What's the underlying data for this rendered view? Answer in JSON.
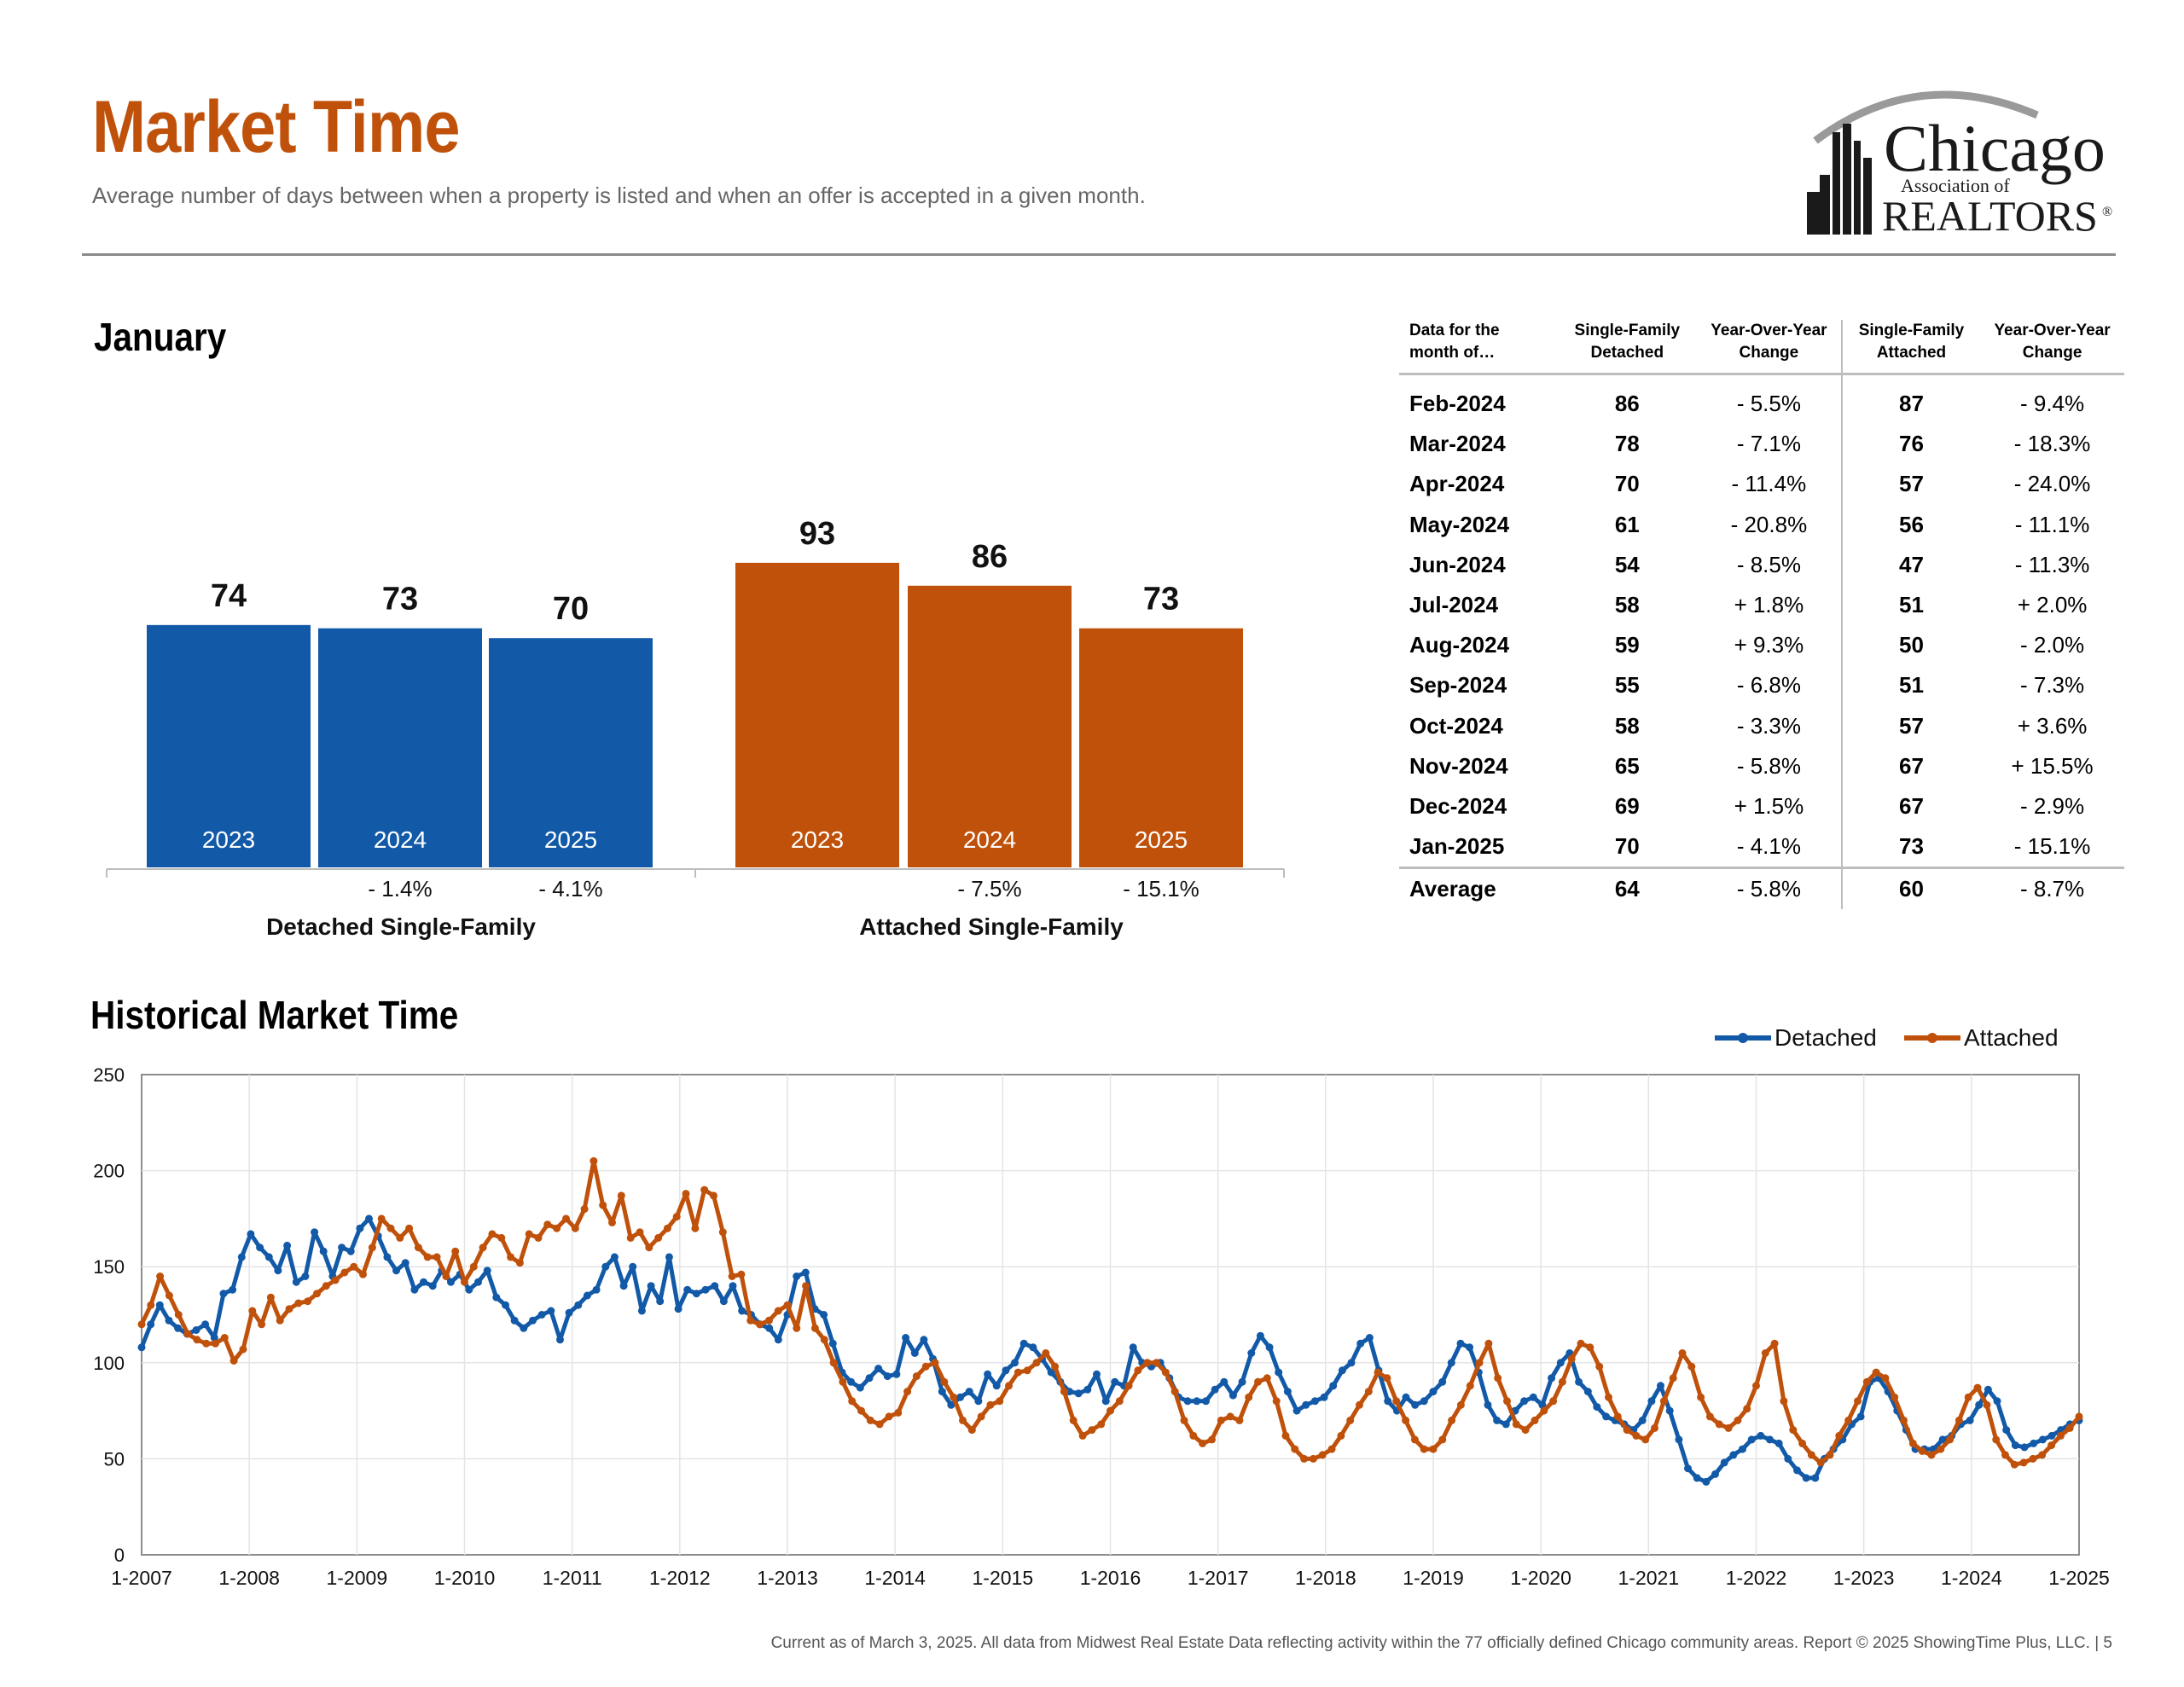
{
  "header": {
    "title": "Market Time",
    "subtitle": "Average number of days between when a property is listed and when an offer is accepted in a given month."
  },
  "logo": {
    "line1": "Chicago",
    "line2": "Association of",
    "line3": "REALTORS",
    "reg": "®"
  },
  "colors": {
    "accent": "#c0510a",
    "detached": "#125aa8",
    "attached": "#c0510a",
    "rule": "#8a8a8a"
  },
  "month_section": {
    "heading": "January"
  },
  "history_section": {
    "heading": "Historical Market Time"
  },
  "table": {
    "headers": [
      "Data for the\nmonth of…",
      "Single-Family\nDetached",
      "Year-Over-Year\nChange",
      "Single-Family\nAttached",
      "Year-Over-Year\nChange"
    ],
    "rows": [
      [
        "Feb-2024",
        "86",
        "- 5.5%",
        "87",
        "- 9.4%"
      ],
      [
        "Mar-2024",
        "78",
        "- 7.1%",
        "76",
        "- 18.3%"
      ],
      [
        "Apr-2024",
        "70",
        "- 11.4%",
        "57",
        "- 24.0%"
      ],
      [
        "May-2024",
        "61",
        "- 20.8%",
        "56",
        "- 11.1%"
      ],
      [
        "Jun-2024",
        "54",
        "- 8.5%",
        "47",
        "- 11.3%"
      ],
      [
        "Jul-2024",
        "58",
        "+ 1.8%",
        "51",
        "+ 2.0%"
      ],
      [
        "Aug-2024",
        "59",
        "+ 9.3%",
        "50",
        "- 2.0%"
      ],
      [
        "Sep-2024",
        "55",
        "- 6.8%",
        "51",
        "- 7.3%"
      ],
      [
        "Oct-2024",
        "58",
        "- 3.3%",
        "57",
        "+ 3.6%"
      ],
      [
        "Nov-2024",
        "65",
        "- 5.8%",
        "67",
        "+ 15.5%"
      ],
      [
        "Dec-2024",
        "69",
        "+ 1.5%",
        "67",
        "- 2.9%"
      ],
      [
        "Jan-2025",
        "70",
        "- 4.1%",
        "73",
        "- 15.1%"
      ]
    ],
    "average": [
      "Average",
      "64",
      "- 5.8%",
      "60",
      "- 8.7%"
    ]
  },
  "footer": "Current as of March 3, 2025.  All data from Midwest Real Estate Data reflecting activity within the 77 officially defined Chicago community areas. Report © 2025 ShowingTime Plus, LLC.  |  5",
  "chart_data": [
    {
      "type": "bar",
      "groups": [
        {
          "name": "Detached Single-Family",
          "color": "#125aa8",
          "categories": [
            "2023",
            "2024",
            "2025"
          ],
          "values": [
            74,
            73,
            70
          ],
          "changes": [
            "",
            "- 1.4%",
            "- 4.1%"
          ]
        },
        {
          "name": "Attached Single-Family",
          "color": "#c0510a",
          "categories": [
            "2023",
            "2024",
            "2025"
          ],
          "values": [
            93,
            86,
            73
          ],
          "changes": [
            "",
            "- 7.5%",
            "- 15.1%"
          ]
        }
      ],
      "ylim": [
        0,
        100
      ]
    },
    {
      "type": "line",
      "legend": "top-right",
      "grid": true,
      "ylim": [
        0,
        250
      ],
      "yticks": [
        "0",
        "50",
        "100",
        "150",
        "200",
        "250"
      ],
      "xticks": [
        "1-2007",
        "1-2008",
        "1-2009",
        "1-2010",
        "1-2011",
        "1-2012",
        "1-2013",
        "1-2014",
        "1-2015",
        "1-2016",
        "1-2017",
        "1-2018",
        "1-2019",
        "1-2020",
        "1-2021",
        "1-2022",
        "1-2023",
        "1-2024",
        "1-2025"
      ],
      "x_start": "1-2007",
      "x_end": "1-2025",
      "series": [
        {
          "name": "Detached",
          "color": "#125aa8",
          "values": [
            108,
            120,
            130,
            122,
            118,
            115,
            117,
            120,
            113,
            136,
            138,
            155,
            167,
            160,
            155,
            148,
            161,
            142,
            145,
            168,
            158,
            145,
            160,
            158,
            170,
            175,
            166,
            155,
            148,
            152,
            138,
            142,
            140,
            148,
            142,
            146,
            138,
            142,
            148,
            134,
            130,
            122,
            118,
            122,
            125,
            127,
            112,
            126,
            130,
            135,
            138,
            150,
            155,
            140,
            150,
            127,
            140,
            132,
            155,
            128,
            138,
            136,
            138,
            140,
            132,
            140,
            127,
            125,
            120,
            118,
            112,
            125,
            145,
            147,
            128,
            125,
            110,
            95,
            90,
            87,
            92,
            97,
            93,
            94,
            113,
            105,
            112,
            102,
            85,
            78,
            82,
            85,
            80,
            94,
            88,
            96,
            100,
            110,
            108,
            102,
            95,
            90,
            85,
            84,
            86,
            94,
            80,
            90,
            88,
            108,
            100,
            98,
            100,
            92,
            82,
            80,
            80,
            80,
            86,
            90,
            83,
            90,
            105,
            114,
            108,
            95,
            85,
            75,
            78,
            80,
            82,
            88,
            96,
            100,
            110,
            113,
            96,
            80,
            75,
            82,
            78,
            80,
            85,
            90,
            100,
            110,
            108,
            95,
            78,
            70,
            68,
            75,
            80,
            82,
            78,
            92,
            100,
            105,
            90,
            85,
            77,
            72,
            70,
            68,
            65,
            70,
            80,
            88,
            75,
            60,
            45,
            40,
            38,
            42,
            48,
            52,
            55,
            60,
            62,
            60,
            58,
            50,
            44,
            40,
            40,
            50,
            55,
            60,
            68,
            72,
            90,
            92,
            85,
            75,
            65,
            55,
            55,
            55,
            60,
            62,
            68,
            70,
            78,
            86,
            80,
            65,
            57,
            56,
            58,
            60,
            62,
            65,
            68,
            70
          ]
        },
        {
          "name": "Attached",
          "color": "#c0510a",
          "values": [
            120,
            130,
            145,
            135,
            125,
            115,
            112,
            110,
            110,
            113,
            101,
            107,
            127,
            120,
            134,
            122,
            128,
            131,
            132,
            136,
            140,
            143,
            147,
            150,
            146,
            160,
            175,
            170,
            165,
            170,
            160,
            155,
            155,
            145,
            158,
            142,
            150,
            160,
            167,
            165,
            155,
            152,
            167,
            165,
            172,
            170,
            175,
            170,
            180,
            205,
            182,
            173,
            187,
            165,
            168,
            160,
            165,
            170,
            176,
            188,
            170,
            190,
            187,
            168,
            145,
            146,
            122,
            120,
            122,
            127,
            130,
            118,
            140,
            118,
            112,
            100,
            90,
            80,
            75,
            70,
            68,
            72,
            74,
            85,
            93,
            98,
            100,
            90,
            82,
            70,
            65,
            72,
            78,
            80,
            88,
            95,
            96,
            100,
            105,
            98,
            85,
            70,
            62,
            65,
            68,
            75,
            80,
            88,
            96,
            100,
            100,
            95,
            85,
            70,
            62,
            58,
            60,
            70,
            72,
            70,
            82,
            90,
            92,
            80,
            62,
            55,
            50,
            50,
            52,
            55,
            62,
            70,
            78,
            85,
            95,
            92,
            80,
            70,
            60,
            55,
            55,
            60,
            70,
            78,
            88,
            100,
            110,
            92,
            80,
            68,
            65,
            70,
            75,
            80,
            90,
            102,
            110,
            108,
            98,
            82,
            72,
            65,
            62,
            60,
            66,
            80,
            92,
            105,
            98,
            82,
            72,
            68,
            66,
            70,
            76,
            88,
            105,
            110,
            80,
            65,
            58,
            52,
            48,
            52,
            62,
            70,
            80,
            90,
            95,
            92,
            82,
            70,
            58,
            54,
            52,
            55,
            60,
            70,
            82,
            87,
            78,
            60,
            52,
            47,
            48,
            50,
            52,
            57,
            62,
            66,
            72
          ]
        }
      ]
    }
  ]
}
